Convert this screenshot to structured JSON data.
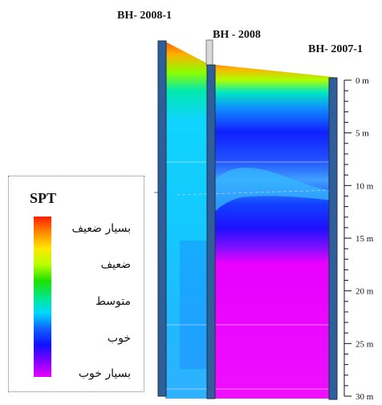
{
  "boreholes": {
    "bh_2008_1": "BH- 2008-1",
    "bh_2008": "BH - 2008",
    "bh_2007_1": "BH- 2007-1"
  },
  "depth_scale": {
    "unit": "m",
    "labels": [
      "0 m",
      "5 m",
      "10 m",
      "15 m",
      "20 m",
      "25 m",
      "30 m"
    ]
  },
  "legend": {
    "title": "SPT",
    "classes": [
      "بسيار ضعيف",
      "ضعيف",
      "متوسط",
      "خوب",
      "بسيار خوب"
    ]
  },
  "colors": {
    "very_weak": "#ff1d00",
    "weak": "#ffe800",
    "medium": "#1fe000",
    "good": "#1010ff",
    "very_good": "#e800ff",
    "column": "#2f5f9a"
  }
}
